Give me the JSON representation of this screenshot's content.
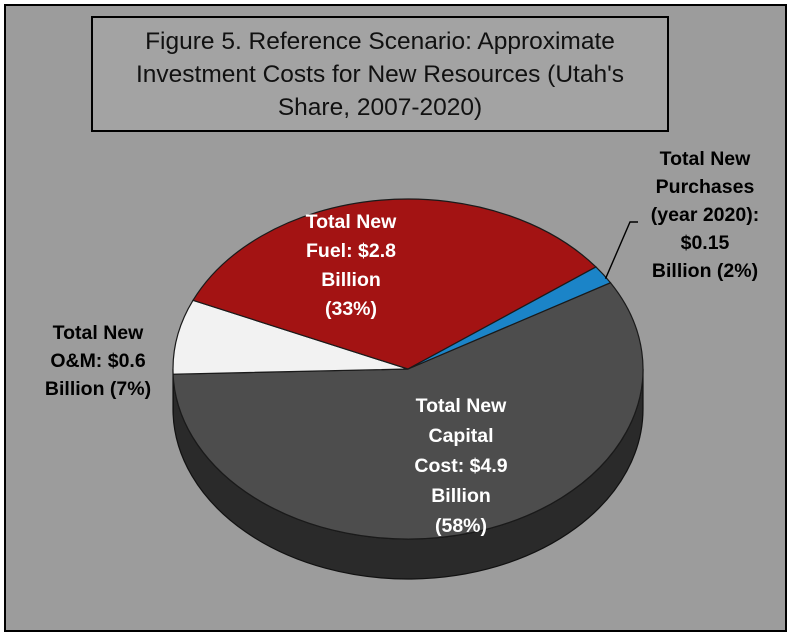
{
  "chart_data": {
    "type": "pie",
    "title": "Figure 5. Reference Scenario: Approximate Investment Costs for New Resources (Utah's Share, 2007-2020)",
    "title_lines": [
      "Figure 5. Reference Scenario: Approximate",
      "Investment Costs for New Resources (Utah's",
      "Share, 2007-2020)"
    ],
    "unit": "Billion",
    "slices": [
      {
        "category": "Total New Capital Cost",
        "value": 4.9,
        "percent": 58,
        "color": "#4d4d4d",
        "side_color": "#2a2a2a",
        "label_color": "#ffffff",
        "label_lines": [
          "Total New",
          "Capital",
          "Cost: $4.9",
          "Billion",
          "(58%)"
        ]
      },
      {
        "category": "Total New O&M",
        "value": 0.6,
        "percent": 7,
        "color": "#f2f2f2",
        "side_color": "#a8a8a8",
        "label_color": "#000000",
        "label_lines": [
          "Total New",
          "O&M: $0.6",
          "Billion (7%)"
        ]
      },
      {
        "category": "Total New Fuel",
        "value": 2.8,
        "percent": 33,
        "color": "#a31313",
        "side_color": "#5e0a0a",
        "label_color": "#ffffff",
        "label_lines": [
          "Total New",
          "Fuel: $2.8",
          "Billion",
          "(33%)"
        ]
      },
      {
        "category": "Total New Purchases (year 2020)",
        "value": 0.15,
        "percent": 2,
        "color": "#1b84c8",
        "side_color": "#0f5785",
        "label_color": "#000000",
        "label_lines": [
          "Total New",
          "Purchases",
          "(year 2020):",
          "$0.15",
          "Billion (2%)"
        ]
      }
    ],
    "colors": {
      "background": "#9c9c9c",
      "title_box": "#a3a3a3"
    }
  }
}
